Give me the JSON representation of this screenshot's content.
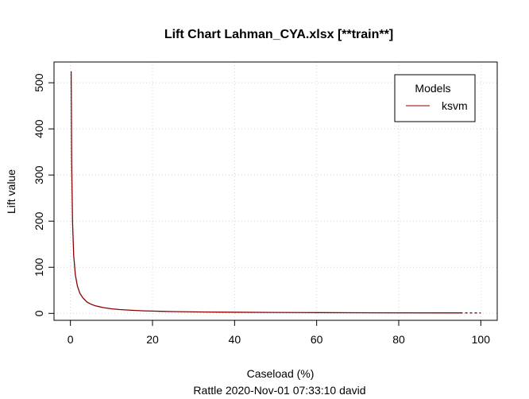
{
  "chart_data": {
    "type": "line",
    "title": "Lift Chart  Lahman_CYA.xlsx [**train**]",
    "xlabel": "Caseload (%)",
    "ylabel": "Lift value",
    "footer": "Rattle 2020-Nov-01 07:33:10 david",
    "xlim": [
      -4,
      104
    ],
    "ylim": [
      -15,
      545
    ],
    "x_ticks": [
      0,
      20,
      40,
      60,
      80,
      100
    ],
    "y_ticks": [
      0,
      100,
      200,
      300,
      400,
      500
    ],
    "grid": true,
    "legend": {
      "title": "Models",
      "position": "top-right"
    },
    "series": [
      {
        "name": "ksvm",
        "color": "#8B0000",
        "dashed_from_x": 95,
        "x": [
          0.19,
          0.3,
          0.5,
          0.8,
          1.2,
          1.7,
          2.3,
          3.0,
          4.0,
          5.0,
          6.0,
          8.0,
          10.0,
          12.0,
          15.0,
          18.0,
          20.0,
          22.0,
          25.0,
          30.0,
          36.0,
          40.0,
          50.0,
          60.0,
          70.0,
          80.0,
          90.0,
          95.0,
          100.0
        ],
        "y": [
          525,
          330,
          200,
          125,
          83,
          59,
          44,
          34,
          25,
          20,
          16.7,
          12.5,
          10.0,
          8.3,
          6.7,
          5.5,
          5.0,
          4.5,
          4.0,
          3.3,
          2.8,
          2.5,
          2.0,
          1.7,
          1.43,
          1.25,
          1.11,
          1.05,
          1.0
        ]
      }
    ]
  }
}
